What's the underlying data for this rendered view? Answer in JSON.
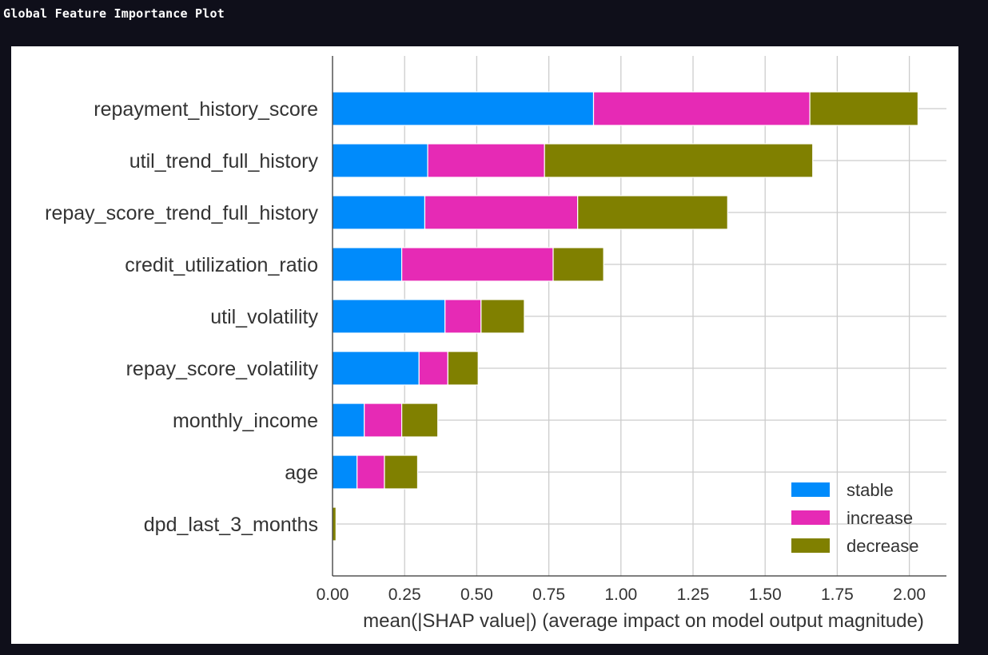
{
  "page": {
    "title": "Global Feature Importance Plot"
  },
  "chart_data": {
    "type": "bar",
    "orientation": "horizontal",
    "stacked": true,
    "categories": [
      "repayment_history_score",
      "util_trend_full_history",
      "repay_score_trend_full_history",
      "credit_utilization_ratio",
      "util_volatility",
      "repay_score_volatility",
      "monthly_income",
      "age",
      "dpd_last_3_months"
    ],
    "series": [
      {
        "name": "stable",
        "color": "#008bfb",
        "values": [
          0.905,
          0.33,
          0.32,
          0.24,
          0.39,
          0.3,
          0.11,
          0.085,
          0.0
        ]
      },
      {
        "name": "increase",
        "color": "#e62ab5",
        "values": [
          0.75,
          0.405,
          0.53,
          0.525,
          0.125,
          0.1,
          0.13,
          0.095,
          0.0
        ]
      },
      {
        "name": "decrease",
        "color": "#808000",
        "values": [
          0.375,
          0.93,
          0.52,
          0.175,
          0.15,
          0.105,
          0.125,
          0.115,
          0.012
        ]
      }
    ],
    "xlabel": "mean(|SHAP value|) (average impact on model output magnitude)",
    "ylabel": "",
    "xlim": [
      0,
      2.12
    ],
    "xticks": [
      "0.00",
      "0.25",
      "0.50",
      "0.75",
      "1.00",
      "1.25",
      "1.50",
      "1.75",
      "2.00"
    ],
    "grid": true,
    "legend_position": "bottom-right"
  }
}
